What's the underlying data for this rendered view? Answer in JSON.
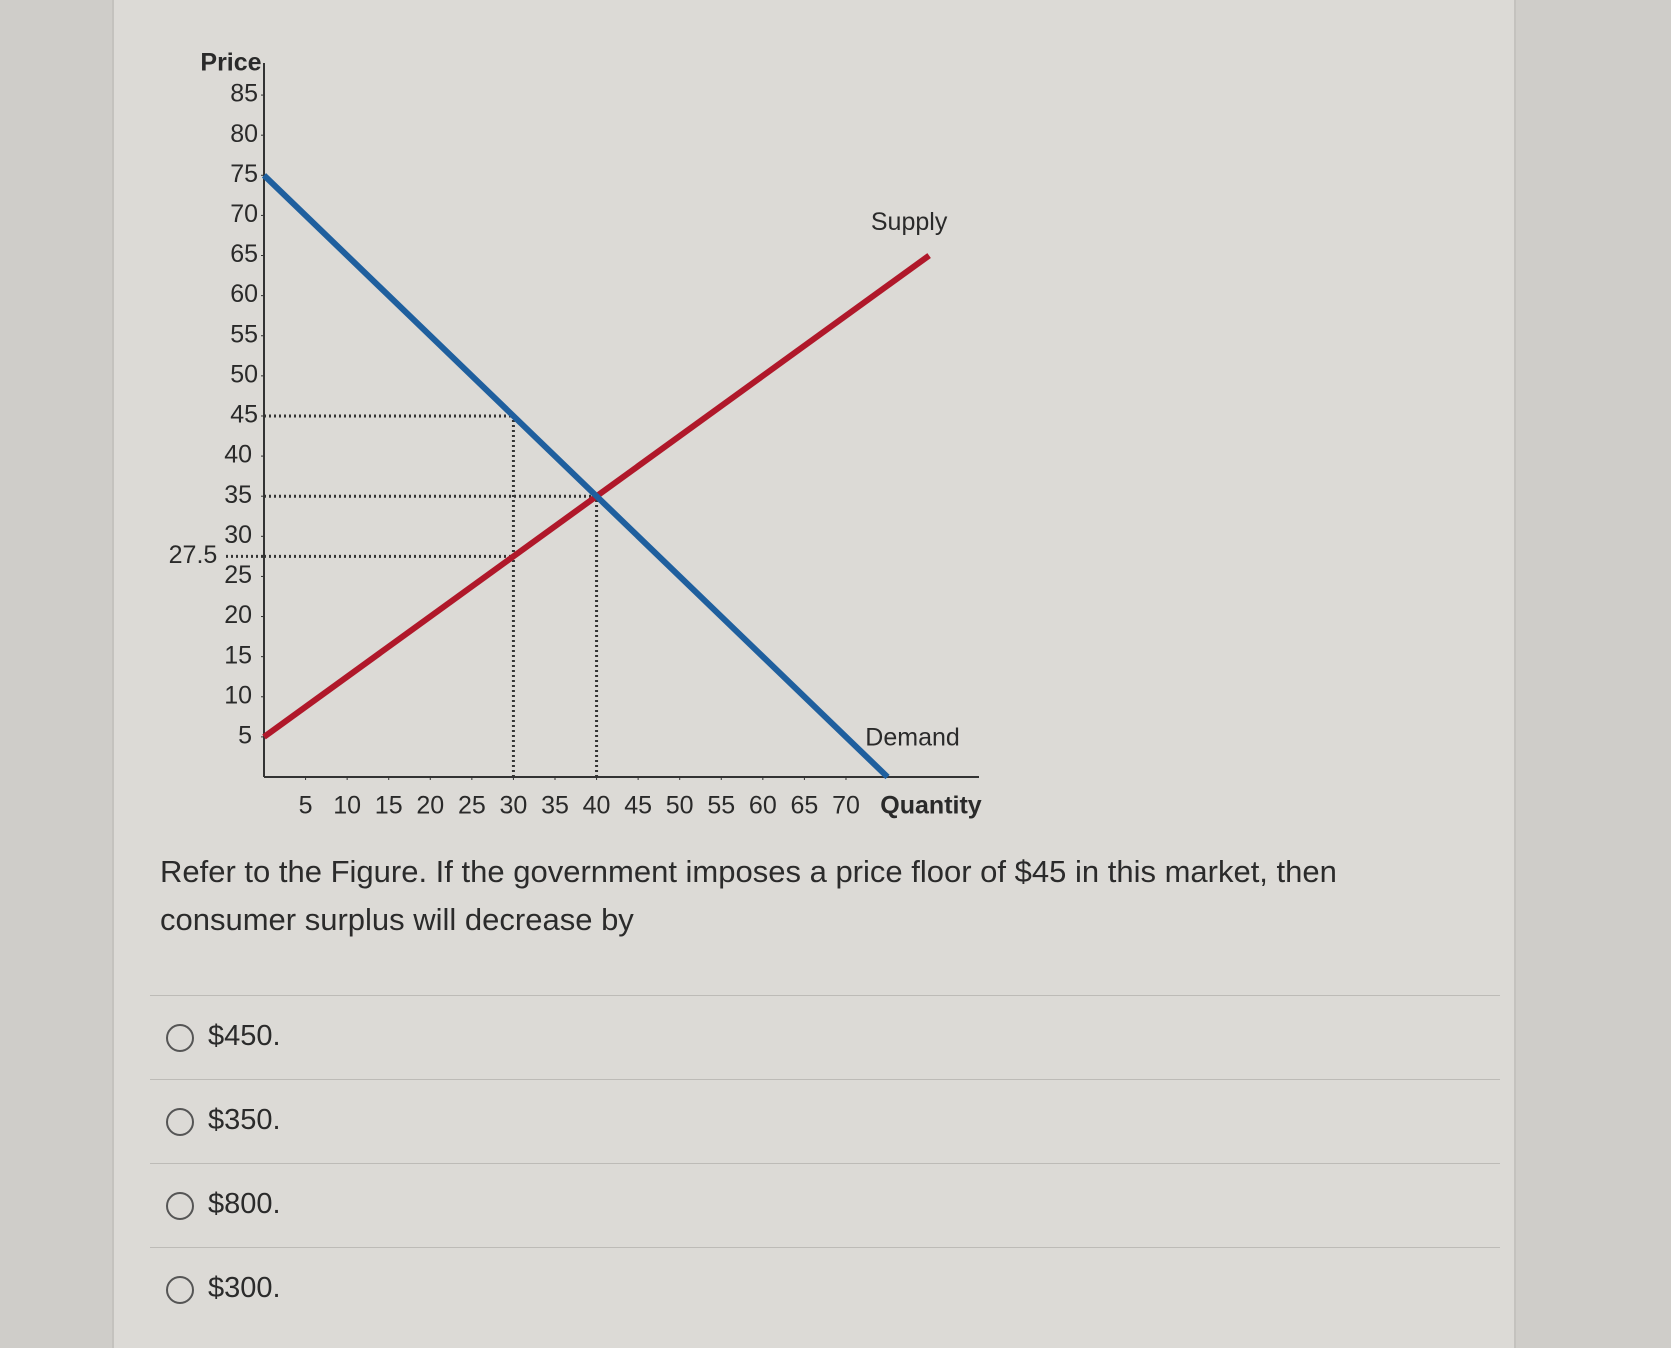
{
  "chart_data": {
    "type": "line",
    "y_label": "Price",
    "x_label": "Quantity",
    "xlim": [
      0,
      86
    ],
    "ylim": [
      0,
      88
    ],
    "xticks": [
      5,
      10,
      15,
      20,
      25,
      30,
      35,
      40,
      45,
      50,
      55,
      60,
      65,
      70
    ],
    "yticks": [
      5,
      10,
      15,
      20,
      25,
      30,
      35,
      40,
      45,
      50,
      55,
      60,
      65,
      70,
      75,
      80,
      85
    ],
    "annotation_yticks": [
      27.5
    ],
    "series": [
      {
        "name": "Supply",
        "color": "#b0182a",
        "x": [
          0,
          80
        ],
        "values": [
          5,
          65
        ]
      },
      {
        "name": "Demand",
        "color": "#1f5f9e",
        "x": [
          0,
          75
        ],
        "values": [
          75,
          0
        ]
      }
    ],
    "guides": [
      {
        "x": [
          0,
          30
        ],
        "values": [
          45,
          45
        ]
      },
      {
        "x": [
          0,
          40
        ],
        "values": [
          35,
          35
        ]
      },
      {
        "x": [
          0,
          30
        ],
        "values": [
          27.5,
          27.5
        ]
      },
      {
        "x": [
          30,
          30
        ],
        "values": [
          0,
          45
        ]
      },
      {
        "x": [
          40,
          40
        ],
        "values": [
          0,
          35
        ]
      }
    ]
  },
  "question": "Refer to the Figure. If the government imposes a price floor of $45 in this market, then consumer surplus will decrease by",
  "options": [
    "$450.",
    "$350.",
    "$800.",
    "$300."
  ]
}
